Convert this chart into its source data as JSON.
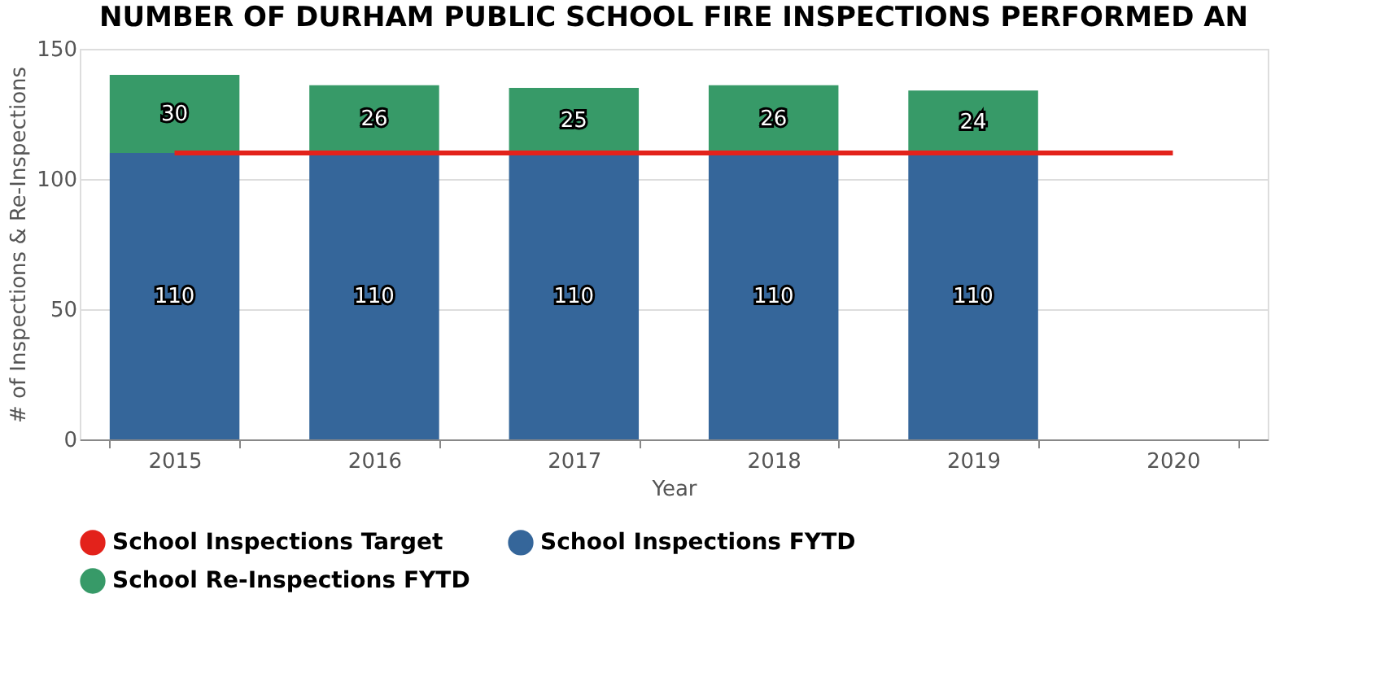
{
  "chart_data": {
    "type": "bar",
    "title": "NUMBER OF DURHAM PUBLIC SCHOOL FIRE INSPECTIONS PERFORMED AN",
    "xlabel": "Year",
    "ylabel": "# of Inspections & Re-Inspections",
    "categories": [
      "2015",
      "2016",
      "2017",
      "2018",
      "2019",
      "2020"
    ],
    "stacked": true,
    "series": [
      {
        "name": "School Inspections Target",
        "type": "line",
        "color": "#e3221b",
        "values": [
          110,
          110,
          110,
          110,
          110,
          110
        ]
      },
      {
        "name": "School Inspections FYTD",
        "color": "#35669a",
        "values": [
          110,
          110,
          110,
          110,
          110,
          null
        ],
        "value_labels": [
          "110",
          "110",
          "110",
          "110",
          "110",
          null
        ]
      },
      {
        "name": "School Re-Inspections FYTD",
        "color": "#379a68",
        "values": [
          30,
          26,
          25,
          26,
          24,
          null
        ],
        "value_labels": [
          "30",
          "26",
          "25",
          "26",
          "24",
          null
        ]
      }
    ],
    "ylim": [
      0,
      150
    ],
    "yticks": [
      0,
      50,
      100,
      150
    ],
    "grid": "y",
    "legend": "bottom"
  }
}
